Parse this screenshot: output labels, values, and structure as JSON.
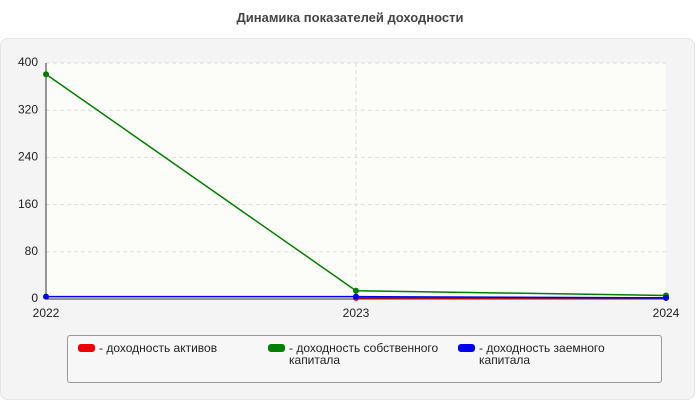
{
  "chart_data": {
    "type": "line",
    "title": "Динамика показателей доходности",
    "categories": [
      "2022",
      "2023",
      "2024"
    ],
    "series": [
      {
        "name": "- доходность активов",
        "color": "#ee0000",
        "values": [
          null,
          2,
          2
        ]
      },
      {
        "name": "- доходность собственного капитала",
        "color": "#008000",
        "values": [
          381,
          14,
          6
        ]
      },
      {
        "name": "- доходность заемного капитала",
        "color": "#0000ee",
        "values": [
          4,
          4,
          2
        ]
      }
    ],
    "ylim": [
      0,
      400
    ],
    "yticks": [
      0,
      80,
      160,
      240,
      320,
      400
    ],
    "grid": true
  }
}
